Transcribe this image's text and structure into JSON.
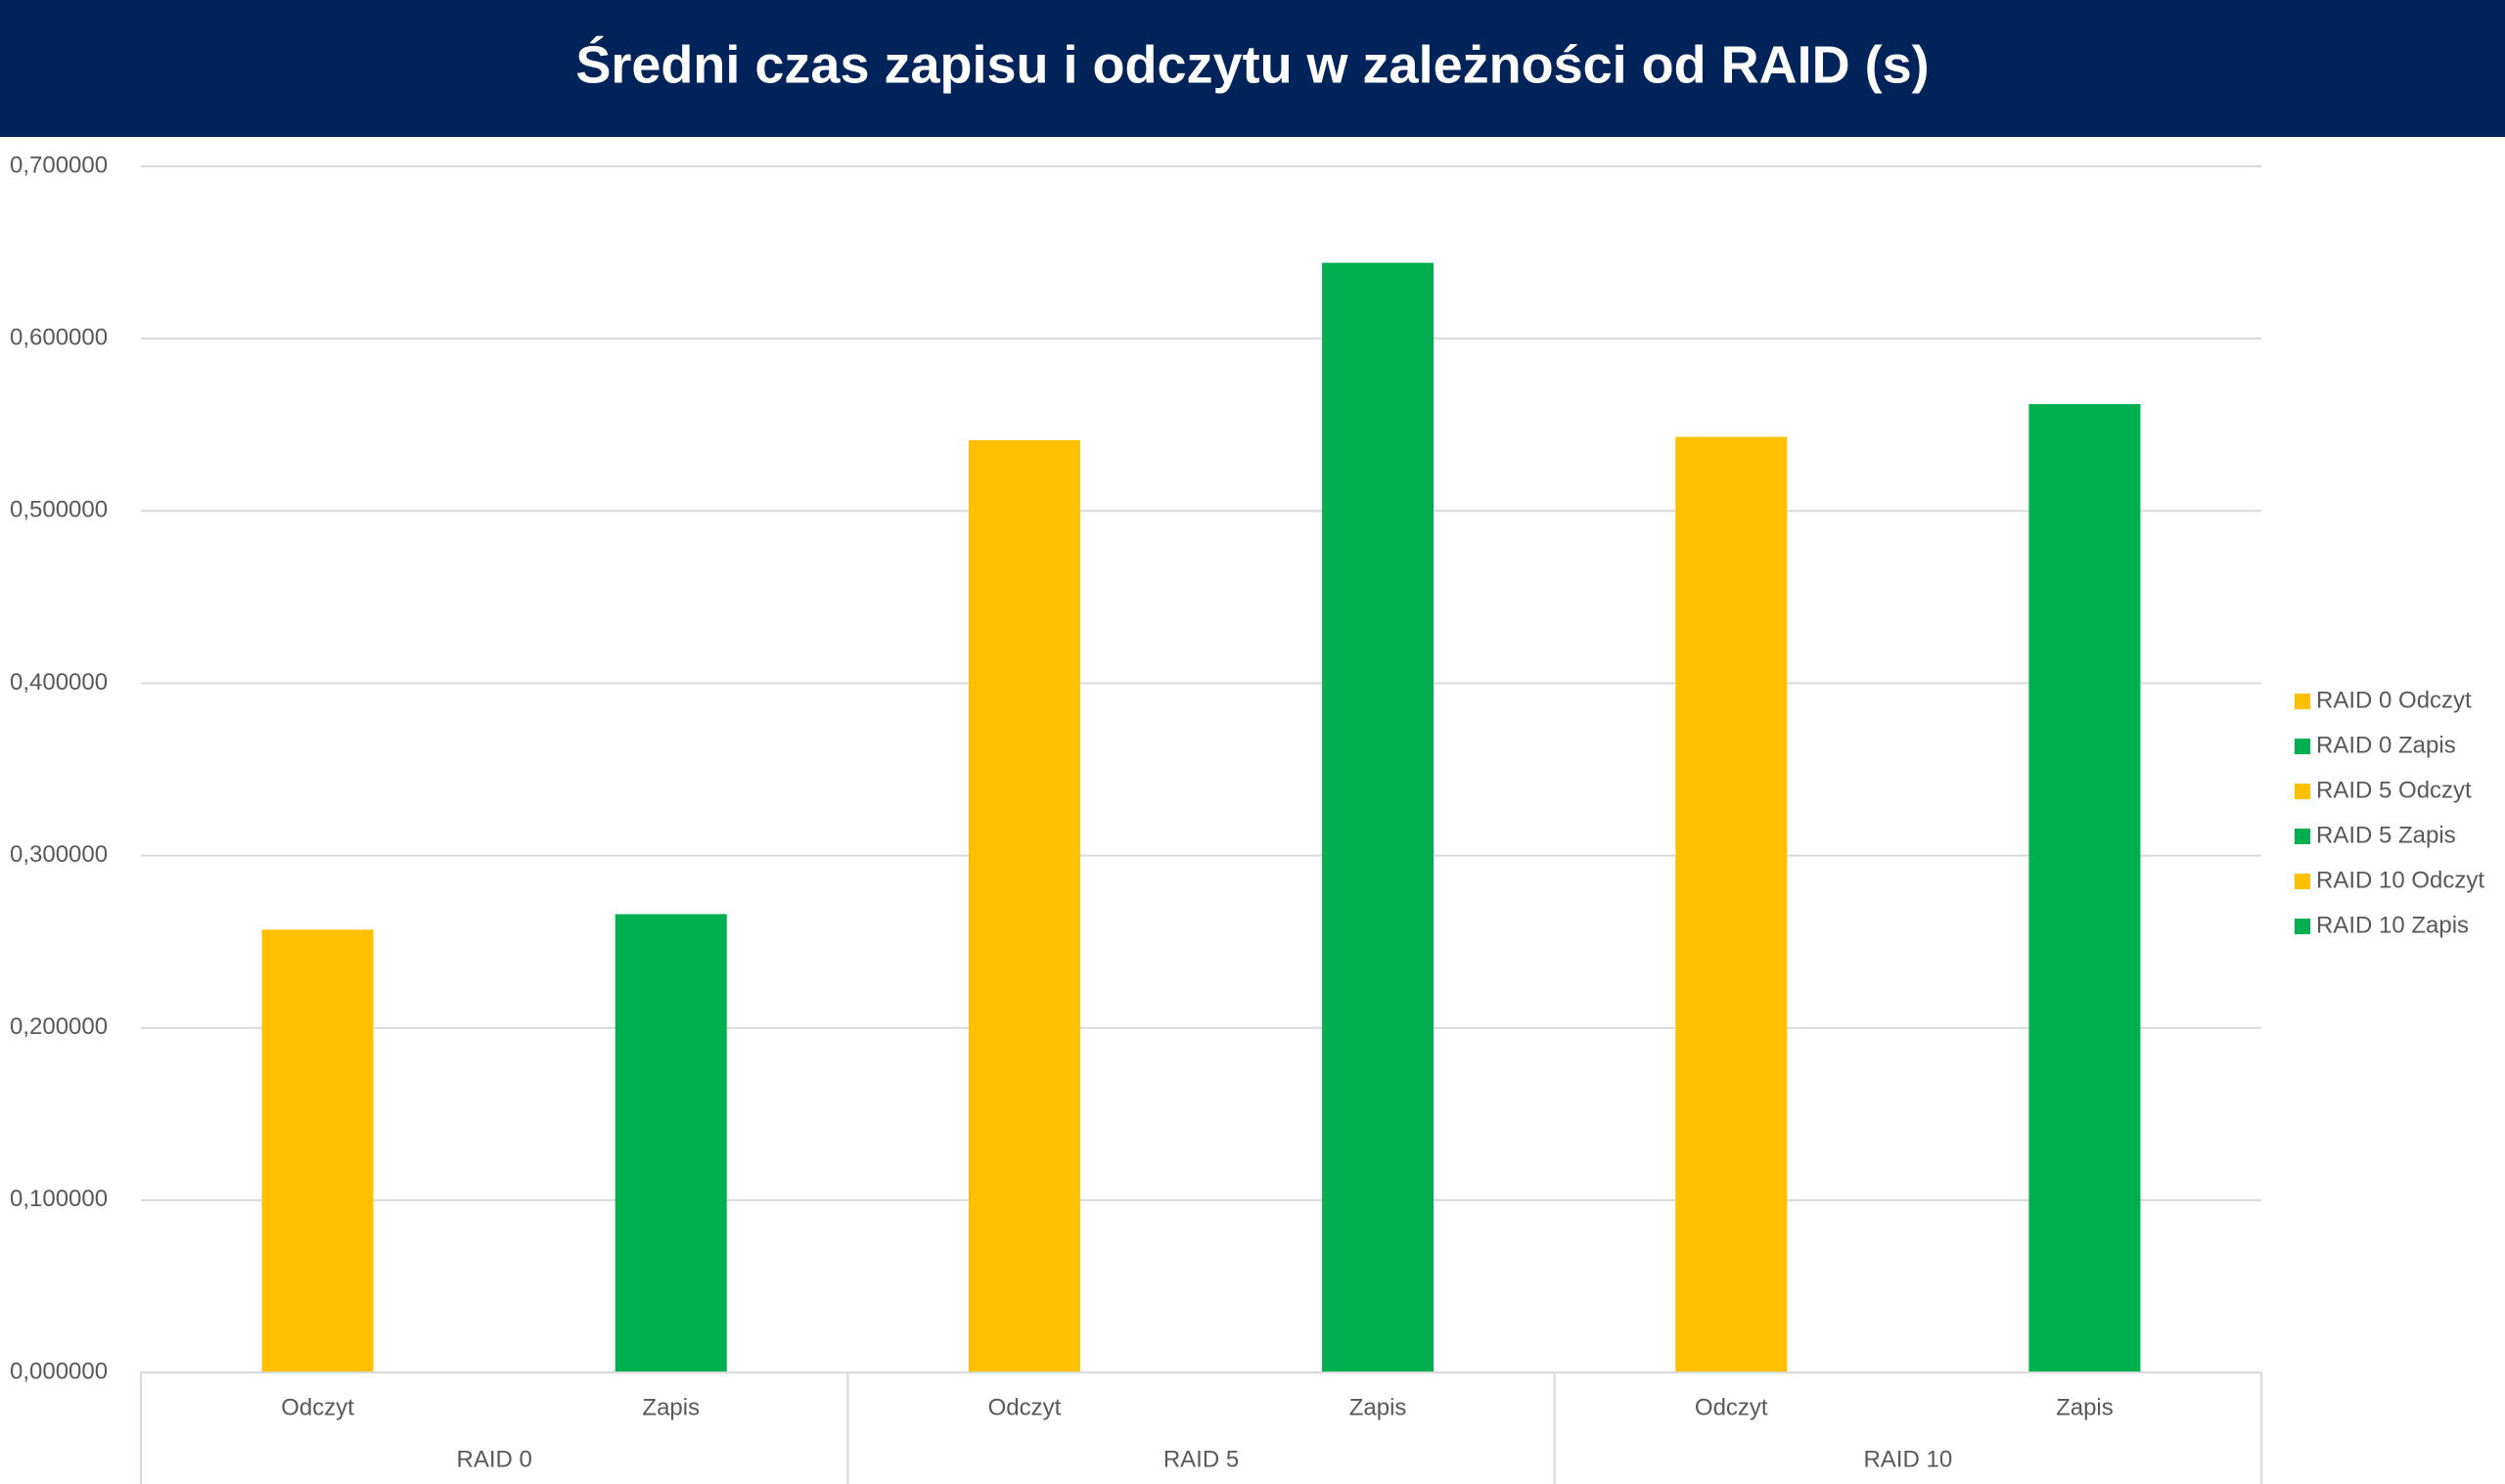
{
  "chart_data": {
    "type": "bar",
    "title": "Średni czas zapisu i odczytu w zależności od RAID (s)",
    "categories": [
      "Odczyt",
      "Zapis",
      "Odczyt",
      "Zapis",
      "Odczyt",
      "Zapis"
    ],
    "groups": [
      "RAID 0",
      "RAID 5",
      "RAID 10"
    ],
    "series": [
      {
        "name": "RAID 0 Odczyt",
        "color": "#ffc000",
        "values": [
          0.257,
          null,
          null,
          null,
          null,
          null
        ]
      },
      {
        "name": "RAID 0 Zapis",
        "color": "#00b050",
        "values": [
          null,
          0.266,
          null,
          null,
          null,
          null
        ]
      },
      {
        "name": "RAID 5 Odczyt",
        "color": "#ffc000",
        "values": [
          null,
          null,
          0.541,
          null,
          null,
          null
        ]
      },
      {
        "name": "RAID 5 Zapis",
        "color": "#00b050",
        "values": [
          null,
          null,
          null,
          0.644,
          null,
          null
        ]
      },
      {
        "name": "RAID 10 Odczyt",
        "color": "#ffc000",
        "values": [
          null,
          null,
          null,
          null,
          0.543,
          null
        ]
      },
      {
        "name": "RAID 10 Zapis",
        "color": "#00b050",
        "values": [
          null,
          null,
          null,
          null,
          null,
          0.562
        ]
      }
    ],
    "ylim": [
      0,
      0.7
    ],
    "yticks": [
      {
        "value": 0,
        "label": "0,000000"
      },
      {
        "value": 0.1,
        "label": "0,100000"
      },
      {
        "value": 0.2,
        "label": "0,200000"
      },
      {
        "value": 0.3,
        "label": "0,300000"
      },
      {
        "value": 0.4,
        "label": "0,400000"
      },
      {
        "value": 0.5,
        "label": "0,500000"
      },
      {
        "value": 0.6,
        "label": "0,600000"
      },
      {
        "value": 0.7,
        "label": "0,700000"
      }
    ],
    "grid": true,
    "legend": "right"
  }
}
